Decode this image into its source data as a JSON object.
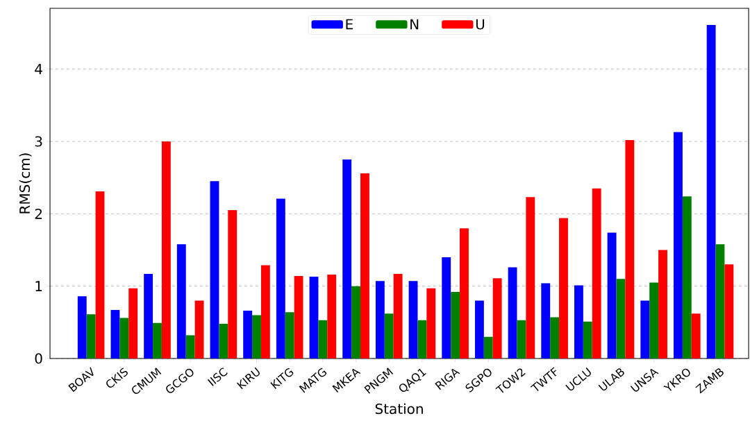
{
  "chart_data": {
    "type": "bar",
    "xlabel": "Station",
    "ylabel": "RMS(cm)",
    "categories": [
      "BOAV",
      "CKIS",
      "CMUM",
      "GCGO",
      "IISC",
      "KIRU",
      "KITG",
      "MATG",
      "MKEA",
      "PNGM",
      "QAQ1",
      "RIGA",
      "SGPO",
      "TOW2",
      "TWTF",
      "UCLU",
      "ULAB",
      "UNSA",
      "YKRO",
      "ZAMB"
    ],
    "series": [
      {
        "name": "E",
        "color": "#0000ff",
        "values": [
          0.86,
          0.67,
          1.17,
          1.58,
          2.45,
          0.66,
          2.21,
          1.13,
          2.75,
          1.07,
          1.07,
          1.4,
          0.8,
          1.26,
          1.04,
          1.01,
          1.74,
          0.8,
          3.13,
          4.61
        ]
      },
      {
        "name": "N",
        "color": "#008000",
        "values": [
          0.61,
          0.56,
          0.49,
          0.32,
          0.48,
          0.6,
          0.64,
          0.53,
          1.0,
          0.62,
          0.53,
          0.92,
          0.3,
          0.53,
          0.57,
          0.51,
          1.1,
          1.05,
          2.24,
          1.58
        ]
      },
      {
        "name": "U",
        "color": "#ff0000",
        "values": [
          2.31,
          0.97,
          3.0,
          0.8,
          2.05,
          1.29,
          1.14,
          1.16,
          2.56,
          1.17,
          0.97,
          1.8,
          1.11,
          2.23,
          1.94,
          2.35,
          3.02,
          1.5,
          0.62,
          1.3
        ]
      }
    ],
    "ylim": [
      0,
      4.84
    ],
    "yticks": [
      0,
      1,
      2,
      3,
      4
    ],
    "grid": "y",
    "legend": "top"
  }
}
